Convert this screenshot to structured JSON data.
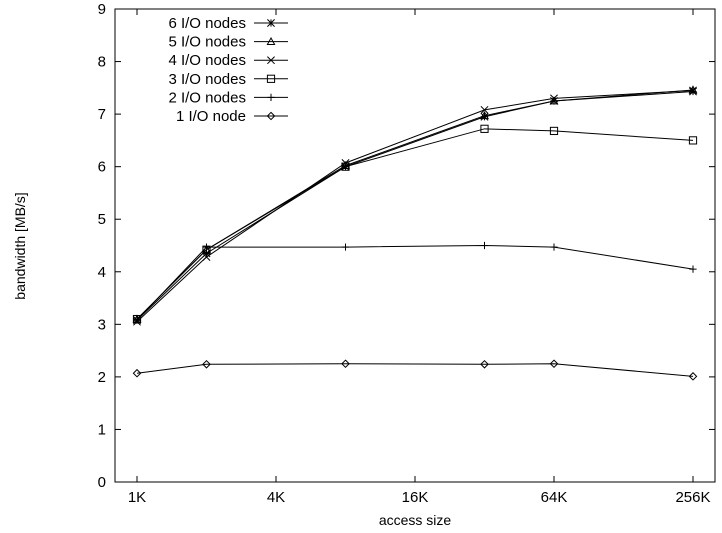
{
  "chart_data": {
    "type": "line",
    "title": "",
    "xlabel": "access size",
    "ylabel": "bandwidth [MB/s]",
    "x_scale": "log2",
    "x": [
      1,
      2,
      8,
      32,
      64,
      256
    ],
    "x_unit": "K",
    "xticks": [
      {
        "value": 1,
        "label": "1K"
      },
      {
        "value": 4,
        "label": "4K"
      },
      {
        "value": 16,
        "label": "16K"
      },
      {
        "value": 64,
        "label": "64K"
      },
      {
        "value": 256,
        "label": "256K"
      }
    ],
    "yticks": [
      0,
      1,
      2,
      3,
      4,
      5,
      6,
      7,
      8,
      9
    ],
    "ylim": [
      0,
      9
    ],
    "grid": false,
    "legend_position": "top-left",
    "series": [
      {
        "name": "6 I/O nodes",
        "marker": "star",
        "values": [
          3.08,
          4.35,
          6.0,
          6.95,
          7.25,
          7.43
        ]
      },
      {
        "name": "5 I/O nodes",
        "marker": "triangle",
        "values": [
          3.1,
          4.42,
          6.02,
          6.97,
          7.25,
          7.46
        ]
      },
      {
        "name": "4 I/O nodes",
        "marker": "x",
        "values": [
          3.05,
          4.28,
          6.07,
          7.08,
          7.3,
          7.45
        ]
      },
      {
        "name": "3 I/O nodes",
        "marker": "square",
        "values": [
          3.1,
          4.42,
          6.0,
          6.72,
          6.68,
          6.5
        ]
      },
      {
        "name": "2 I/O nodes",
        "marker": "plus",
        "values": [
          3.08,
          4.47,
          4.47,
          4.5,
          4.47,
          4.05
        ]
      },
      {
        "name": "1 I/O node",
        "marker": "diamond",
        "values": [
          2.07,
          2.24,
          2.25,
          2.24,
          2.25,
          2.01
        ]
      }
    ]
  }
}
